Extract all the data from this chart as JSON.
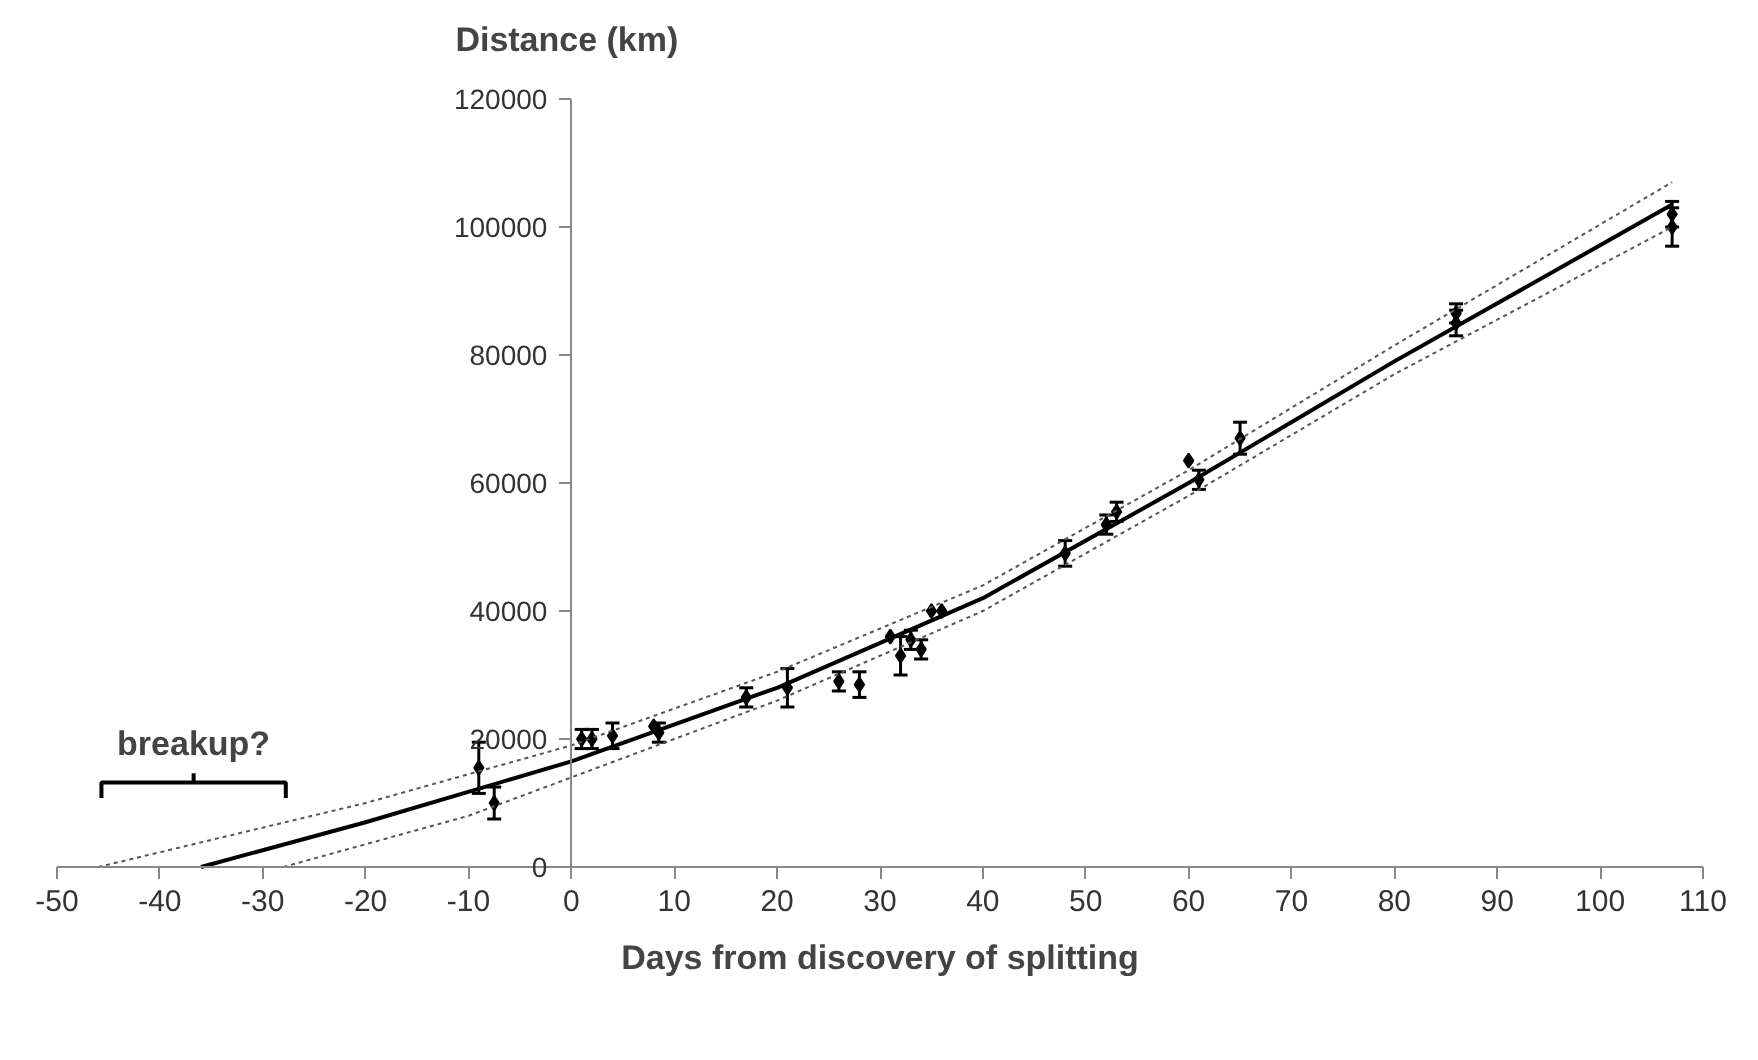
{
  "chart_data": {
    "type": "scatter",
    "xlabel": "Days from discovery of splitting",
    "ylabel": "Distance (km)",
    "xlim": [
      -50,
      110
    ],
    "ylim": [
      0,
      120000
    ],
    "xticks": [
      -50,
      -40,
      -30,
      -20,
      -10,
      0,
      10,
      20,
      30,
      40,
      50,
      60,
      70,
      80,
      90,
      100,
      110
    ],
    "yticks": [
      0,
      20000,
      40000,
      60000,
      80000,
      100000,
      120000
    ],
    "grid": false,
    "marker": "diamond",
    "annotations": [
      "breakup?"
    ],
    "series": [
      {
        "color": "#000000",
        "x": [
          -9,
          -7.5,
          1,
          2,
          4,
          8,
          8.5,
          17,
          21,
          26,
          28,
          31,
          32,
          33,
          34,
          35,
          36,
          48,
          52,
          53,
          60,
          61,
          65,
          86,
          86,
          107,
          107
        ],
        "values": [
          15500,
          10000,
          20000,
          20000,
          20500,
          22000,
          21000,
          26500,
          28000,
          29000,
          28500,
          36000,
          33000,
          35500,
          34000,
          40000,
          40000,
          49000,
          53500,
          55500,
          63500,
          60500,
          67000,
          85000,
          86500,
          102000,
          100000
        ],
        "errors": [
          4000,
          2500,
          1500,
          1500,
          2000,
          null,
          1500,
          1500,
          3000,
          1500,
          2000,
          null,
          3000,
          1500,
          1500,
          null,
          null,
          2000,
          1500,
          1500,
          null,
          1500,
          2500,
          2000,
          1500,
          2000,
          3000
        ]
      },
      {
        "type": "line",
        "marker": "none",
        "color": "#000000",
        "line_style": "solid",
        "x": [
          -36,
          -20,
          0,
          20,
          40,
          60,
          80,
          107
        ],
        "values": [
          0,
          7000,
          16500,
          28000,
          42000,
          60000,
          79000,
          103500
        ]
      },
      {
        "type": "line",
        "marker": "none",
        "color": "#555555",
        "line_style": "dotted",
        "x": [
          -46,
          -20,
          0,
          20,
          40,
          60,
          80,
          107
        ],
        "values": [
          0,
          10000,
          19000,
          30500,
          44000,
          62000,
          81500,
          107000
        ]
      },
      {
        "type": "line",
        "marker": "none",
        "color": "#555555",
        "line_style": "dotted",
        "x": [
          -28,
          -10,
          0,
          20,
          40,
          60,
          80,
          107
        ],
        "values": [
          0,
          8000,
          14000,
          26000,
          40000,
          58000,
          77000,
          100000
        ]
      }
    ]
  }
}
